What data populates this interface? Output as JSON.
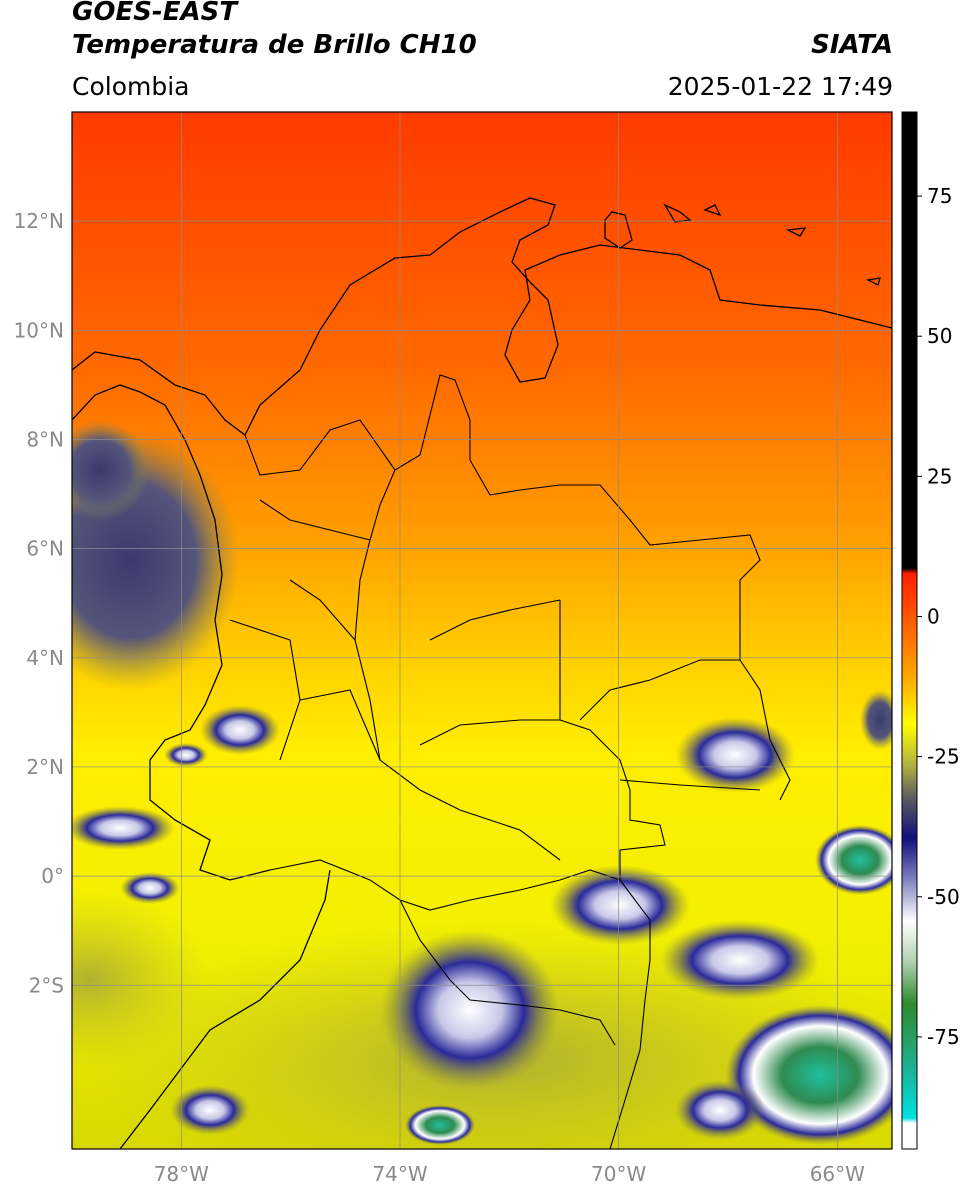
{
  "header": {
    "satellite": "GOES-EAST",
    "product": "Temperatura de Brillo CH10",
    "agency": "SIATA",
    "region": "Colombia",
    "datetime": "2025-01-22 17:49"
  },
  "map": {
    "lon_range": [
      -80,
      -65
    ],
    "lat_range": [
      -5,
      14
    ],
    "lat_ticks": [
      {
        "value": 12,
        "label": "12°N"
      },
      {
        "value": 10,
        "label": "10°N"
      },
      {
        "value": 8,
        "label": "8°N"
      },
      {
        "value": 6,
        "label": "6°N"
      },
      {
        "value": 4,
        "label": "4°N"
      },
      {
        "value": 2,
        "label": "2°N"
      },
      {
        "value": 0,
        "label": "0°"
      },
      {
        "value": -2,
        "label": "2°S"
      }
    ],
    "lon_ticks": [
      {
        "value": -78,
        "label": "78°W"
      },
      {
        "value": -74,
        "label": "74°W"
      },
      {
        "value": -70,
        "label": "70°W"
      },
      {
        "value": -66,
        "label": "66°W"
      }
    ],
    "grid": true
  },
  "colorbar": {
    "range": [
      -95,
      90
    ],
    "ticks": [
      {
        "value": 75,
        "label": "75"
      },
      {
        "value": 50,
        "label": "50"
      },
      {
        "value": 25,
        "label": "25"
      },
      {
        "value": 0,
        "label": "0"
      },
      {
        "value": -25,
        "label": "-25"
      },
      {
        "value": -50,
        "label": "-50"
      },
      {
        "value": -75,
        "label": "-75"
      }
    ],
    "colors": {
      "warm_top": "#000000",
      "red": "#ff2a00",
      "orange": "#ff8c00",
      "yellow": "#ffff00",
      "olive": "#9c9c3c",
      "navy": "#1a1a8c",
      "white": "#ffffff",
      "green": "#2e8b2e",
      "cyan": "#20d0c8"
    }
  }
}
